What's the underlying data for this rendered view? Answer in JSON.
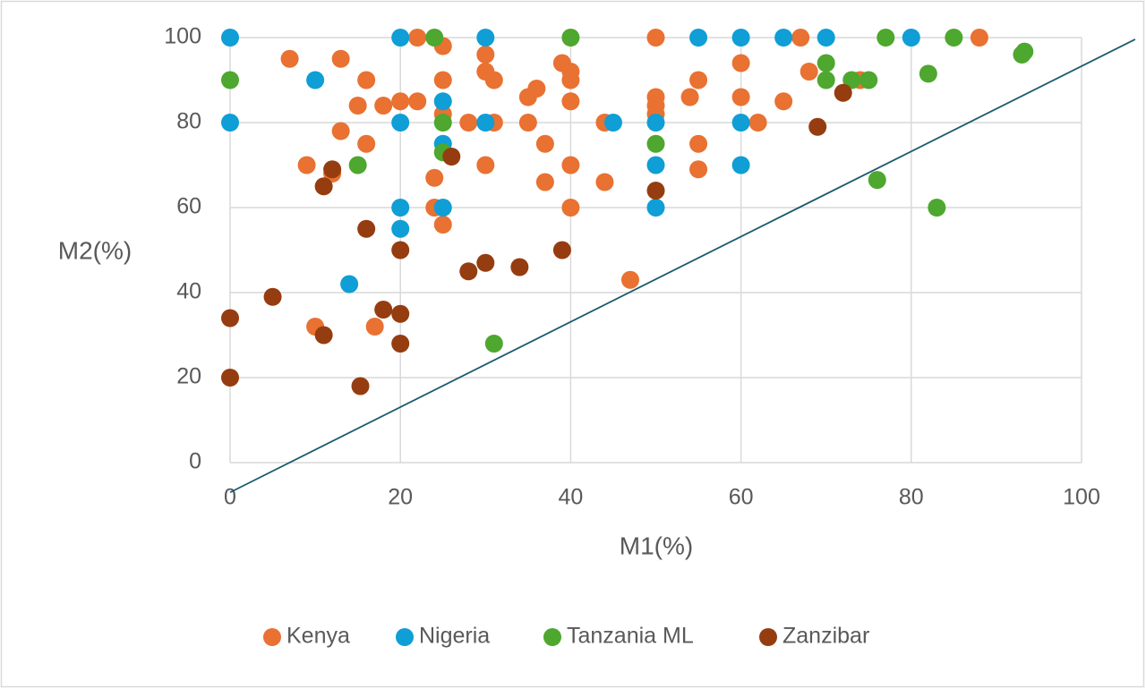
{
  "chart_data": {
    "type": "scatter",
    "x_label": "M1(%)",
    "y_label": "M2(%)",
    "xlim": [
      0,
      100
    ],
    "ylim": [
      0,
      100
    ],
    "xticks": [
      0,
      20,
      40,
      60,
      80,
      100
    ],
    "yticks": [
      0,
      20,
      40,
      60,
      80,
      100
    ],
    "grid": true,
    "legend": "bottom",
    "reference_line": {
      "color": "#1d5a6e",
      "x": [
        0,
        106.3
      ],
      "y": [
        -7,
        99.6
      ]
    },
    "series": [
      {
        "name": "Kenya",
        "color": "#e97132",
        "x": [
          7,
          13,
          22,
          25,
          30,
          30,
          31,
          25,
          16,
          15,
          18,
          20,
          22,
          13,
          16,
          9,
          12,
          25,
          24,
          24,
          25,
          28,
          31,
          30,
          35,
          36,
          35,
          37,
          37,
          39,
          40,
          40,
          40,
          40,
          40,
          44,
          44,
          47,
          50,
          50,
          50,
          50,
          54,
          55,
          55,
          55,
          60,
          60,
          62,
          65,
          67,
          68,
          74,
          88,
          10,
          17
        ],
        "values": [
          95,
          95,
          100,
          98,
          96,
          92,
          90,
          90,
          90,
          84,
          84,
          85,
          85,
          78,
          75,
          70,
          68,
          82,
          67,
          60,
          56,
          80,
          80,
          70,
          86,
          88,
          80,
          75,
          66,
          94,
          92,
          90,
          85,
          70,
          60,
          80,
          66,
          43,
          100,
          86,
          84,
          82,
          86,
          90,
          75,
          69,
          94,
          86,
          80,
          85,
          100,
          92,
          90,
          100,
          32,
          32
        ]
      },
      {
        "name": "Nigeria",
        "color": "#0f9ed5",
        "x": [
          0,
          0,
          10,
          20,
          20,
          20,
          20,
          14,
          25,
          25,
          25,
          30,
          30,
          45,
          50,
          50,
          50,
          55,
          60,
          60,
          60,
          65,
          70,
          80
        ],
        "values": [
          100,
          80,
          90,
          100,
          80,
          60,
          55,
          42,
          85,
          75,
          60,
          100,
          80,
          80,
          80,
          70,
          60,
          100,
          100,
          80,
          70,
          100,
          100,
          100
        ]
      },
      {
        "name": "Tanzania ML",
        "color": "#4ea72e",
        "x": [
          0,
          15,
          24,
          25,
          25,
          31,
          40,
          50,
          70,
          70,
          73,
          75,
          76,
          77,
          82,
          83,
          85,
          93,
          93.3
        ],
        "values": [
          90,
          70,
          100,
          80,
          73,
          28,
          100,
          75,
          94,
          90,
          90,
          90,
          66.5,
          100,
          91.5,
          60,
          100,
          96,
          96.7
        ]
      },
      {
        "name": "Zanzibar",
        "color": "#953d10",
        "x": [
          0,
          0,
          5,
          11,
          12,
          11,
          15.3,
          16,
          18,
          20,
          20,
          20,
          26,
          28,
          30,
          34,
          39,
          50,
          69,
          72
        ],
        "values": [
          34,
          20,
          39,
          65,
          69,
          30,
          18,
          55,
          36,
          50,
          35,
          28,
          72,
          45,
          47,
          46,
          50,
          64,
          79,
          87
        ]
      }
    ]
  }
}
